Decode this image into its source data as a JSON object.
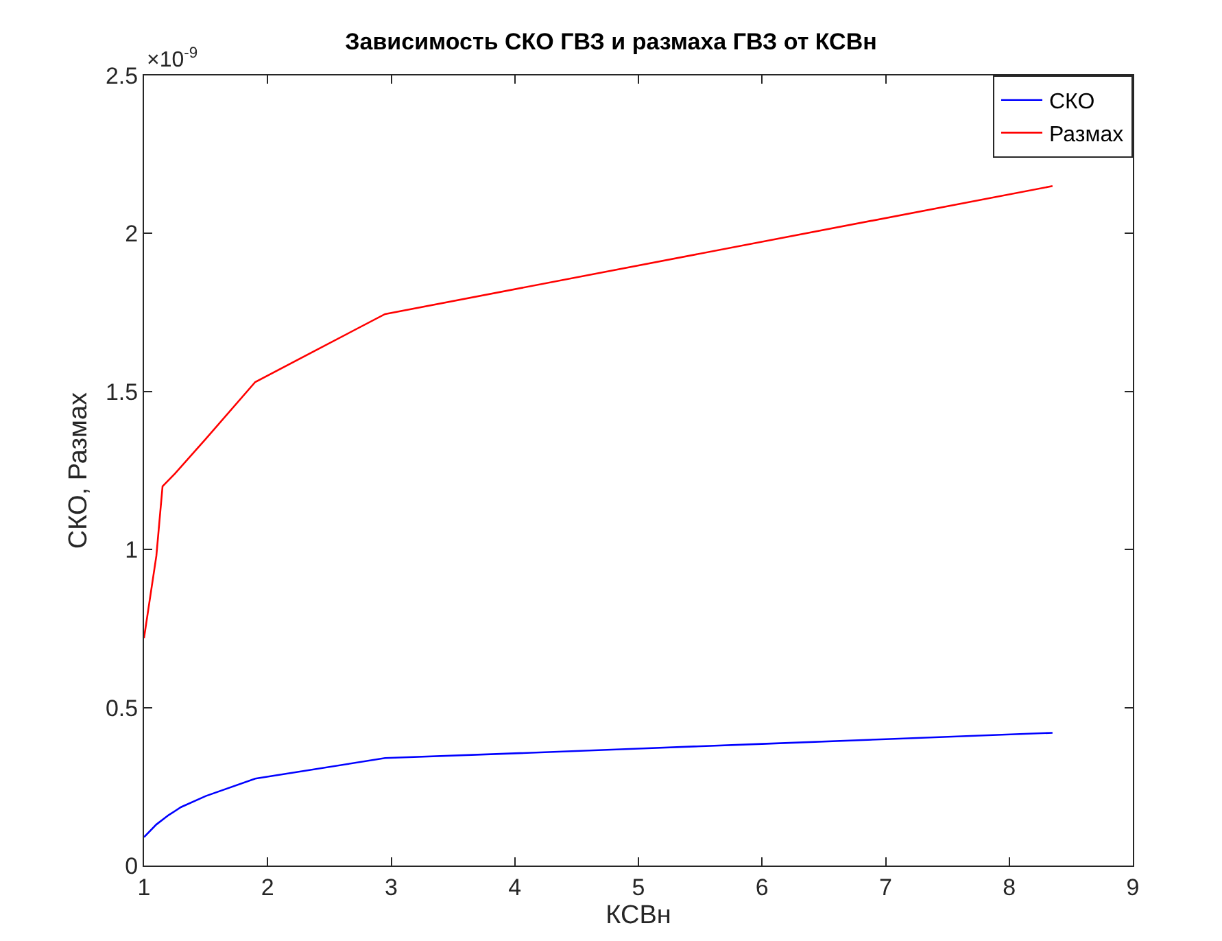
{
  "chart_data": {
    "type": "line",
    "title": "Зависимость СКО ГВЗ и размаха ГВЗ от КСВн",
    "xlabel": "КСВн",
    "ylabel": "СКО, Размах",
    "annotations": [
      "×10$^{-9}$"
    ],
    "series": [
      {
        "name": "СКО",
        "color": "#0000ff",
        "x": [
          1,
          1.1,
          1.2,
          1.3,
          1.5,
          1.9,
          2.95,
          4,
          5,
          6,
          7,
          8.35
        ],
        "values": [
          0.09,
          0.13,
          0.16,
          0.185,
          0.22,
          0.275,
          0.34,
          0.355,
          0.37,
          0.385,
          0.4,
          0.42
        ]
      },
      {
        "name": "Размах",
        "color": "#ff0000",
        "x": [
          1,
          1.1,
          1.15,
          1.25,
          1.5,
          1.9,
          2.95,
          8.35
        ],
        "values": [
          0.72,
          0.98,
          1.2,
          1.24,
          1.35,
          1.53,
          1.745,
          2.15
        ]
      }
    ],
    "xlim": [
      1,
      9
    ],
    "xticks": [
      1,
      2,
      3,
      4,
      5,
      6,
      7,
      8,
      9
    ],
    "ylim": [
      0,
      2.5
    ],
    "yticks": [
      0,
      0.5,
      1,
      1.5,
      2,
      2.5
    ],
    "legend": "top right",
    "marker": "none",
    "line_style": "solid"
  }
}
